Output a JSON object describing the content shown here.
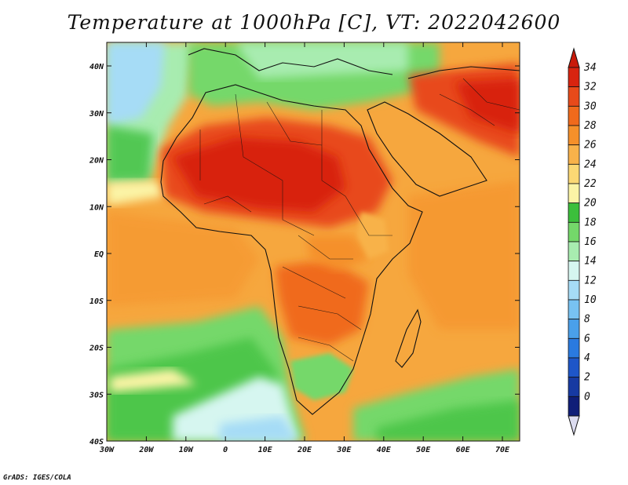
{
  "title": "Temperature at 1000hPa [C], VT: 2022042600",
  "footer": "GrADS: IGES/COLA",
  "lat_ticks": [
    "40N",
    "30N",
    "20N",
    "10N",
    "EQ",
    "10S",
    "20S",
    "30S",
    "40S"
  ],
  "lon_ticks": [
    "30W",
    "20W",
    "10W",
    "0",
    "10E",
    "20E",
    "30E",
    "40E",
    "50E",
    "60E",
    "70E"
  ],
  "colorbar": {
    "labels": [
      "34",
      "32",
      "30",
      "28",
      "26",
      "24",
      "22",
      "20",
      "18",
      "16",
      "14",
      "12",
      "10",
      "8",
      "6",
      "4",
      "2",
      "0"
    ],
    "colors": [
      "#d8240f",
      "#e84a1a",
      "#f06a1c",
      "#f5902a",
      "#f8b24a",
      "#fbd874",
      "#fbf4a6",
      "#3cbf3c",
      "#74d86a",
      "#a8ecb0",
      "#d6f6f0",
      "#a6dcf6",
      "#78c2f2",
      "#4aa0ea",
      "#2a7ae0",
      "#1e56c8",
      "#173aa2",
      "#0f1e78"
    ],
    "over_color": "#c81a0a",
    "under_color": "#dcdcf0"
  },
  "legend_colors": {
    "ocean_warm": "#f4a43a",
    "ocean_cool": "#74d86a",
    "hot_core": "#d8240f"
  }
}
